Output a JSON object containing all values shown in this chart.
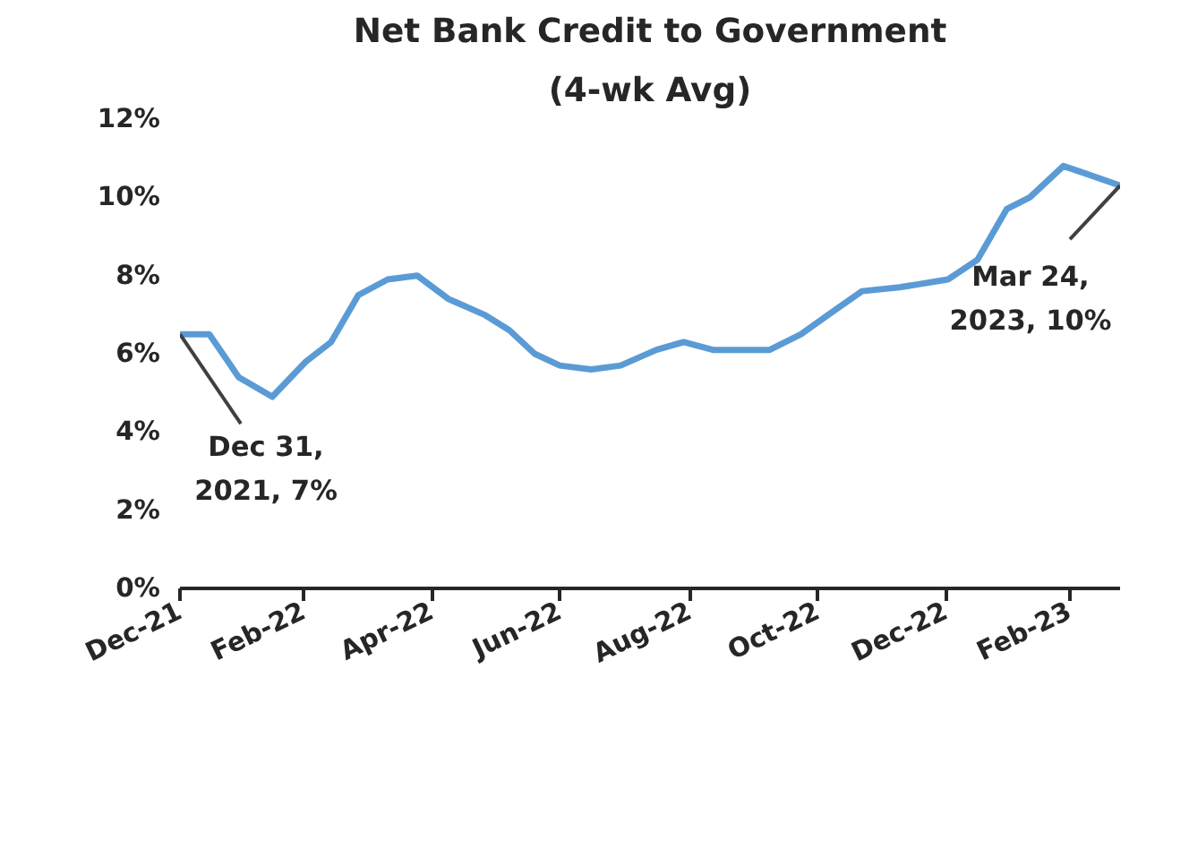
{
  "chart_data": {
    "type": "line",
    "title": "Net Bank Credit to Government",
    "subtitle": "(4-wk Avg)",
    "x": [
      "2021-12-31",
      "2022-01-14",
      "2022-01-28",
      "2022-02-13",
      "2022-03-01",
      "2022-03-13",
      "2022-03-26",
      "2022-04-09",
      "2022-04-23",
      "2022-05-08",
      "2022-05-25",
      "2022-06-06",
      "2022-06-18",
      "2022-06-30",
      "2022-07-15",
      "2022-07-29",
      "2022-08-15",
      "2022-08-28",
      "2022-09-11",
      "2022-10-08",
      "2022-10-23",
      "2022-11-05",
      "2022-11-21",
      "2022-12-09",
      "2023-01-01",
      "2023-01-15",
      "2023-01-29",
      "2023-02-09",
      "2023-02-25",
      "2023-03-08",
      "2023-03-24"
    ],
    "series": [
      {
        "color": "#5b9bd5",
        "values": [
          6.5,
          6.5,
          5.4,
          4.9,
          5.8,
          6.3,
          7.5,
          7.9,
          8.0,
          7.4,
          7.0,
          6.6,
          6.0,
          5.7,
          5.6,
          5.7,
          6.1,
          6.3,
          6.1,
          6.1,
          6.5,
          7.0,
          7.6,
          7.7,
          7.9,
          8.4,
          9.7,
          10.0,
          10.8,
          10.6,
          10.3
        ]
      }
    ],
    "xlim": [
      "2021-12-31",
      "2023-03-24"
    ],
    "xticks": [
      {
        "value": "2021-12-31",
        "label": "Dec-21"
      },
      {
        "value": "2022-02-28",
        "label": "Feb-22"
      },
      {
        "value": "2022-04-30",
        "label": "Apr-22"
      },
      {
        "value": "2022-06-30",
        "label": "Jun-22"
      },
      {
        "value": "2022-08-31",
        "label": "Aug-22"
      },
      {
        "value": "2022-10-31",
        "label": "Oct-22"
      },
      {
        "value": "2022-12-31",
        "label": "Dec-22"
      },
      {
        "value": "2023-02-28",
        "label": "Feb-23"
      }
    ],
    "ylim": [
      0,
      12
    ],
    "yticks": [
      {
        "value": 0,
        "label": "0%"
      },
      {
        "value": 2,
        "label": "2%"
      },
      {
        "value": 4,
        "label": "4%"
      },
      {
        "value": 6,
        "label": "6%"
      },
      {
        "value": 8,
        "label": "8%"
      },
      {
        "value": 10,
        "label": "10%"
      },
      {
        "value": 12,
        "label": "12%"
      }
    ],
    "annotations": [
      {
        "text": "Dec 31,\n2021, 7%",
        "x": "2021-12-31",
        "y": 6.5
      },
      {
        "text": "Mar 24,\n2023, 10%",
        "x": "2023-03-24",
        "y": 10.3
      }
    ],
    "grid": false,
    "marker": "none",
    "line_style": "solid"
  }
}
